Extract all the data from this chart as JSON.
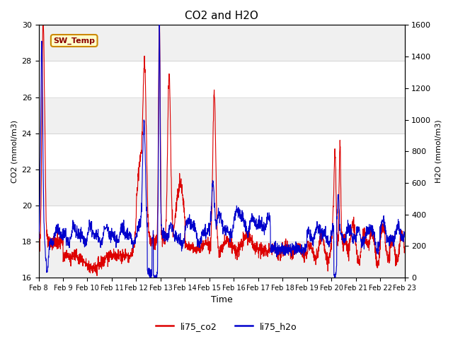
{
  "title": "CO2 and H2O",
  "xlabel": "Time",
  "ylabel_left": "CO2 (mmol/m3)",
  "ylabel_right": "H2O (mmol/m3)",
  "ylim_left": [
    16,
    30
  ],
  "ylim_right": [
    0,
    1600
  ],
  "yticks_left": [
    16,
    18,
    20,
    22,
    24,
    26,
    28,
    30
  ],
  "yticks_right": [
    0,
    200,
    400,
    600,
    800,
    1000,
    1200,
    1400,
    1600
  ],
  "xtick_labels": [
    "Feb 8",
    "Feb 9",
    "Feb 10",
    "Feb 11",
    "Feb 12",
    "Feb 13",
    "Feb 14",
    "Feb 15",
    "Feb 16",
    "Feb 17",
    "Feb 18",
    "Feb 19",
    "Feb 20",
    "Feb 21",
    "Feb 22",
    "Feb 23"
  ],
  "color_co2": "#dd0000",
  "color_h2o": "#0000cc",
  "label_co2": "li75_co2",
  "label_h2o": "li75_h2o",
  "sw_temp_label": "SW_Temp",
  "sw_temp_fgcolor": "#8B0000",
  "sw_temp_edgecolor": "#cc8800",
  "sw_temp_bgcolor": "#ffffcc",
  "plot_bgcolor": "#f0f0f0",
  "band_color_alt": "#ffffff",
  "n_points": 2000
}
